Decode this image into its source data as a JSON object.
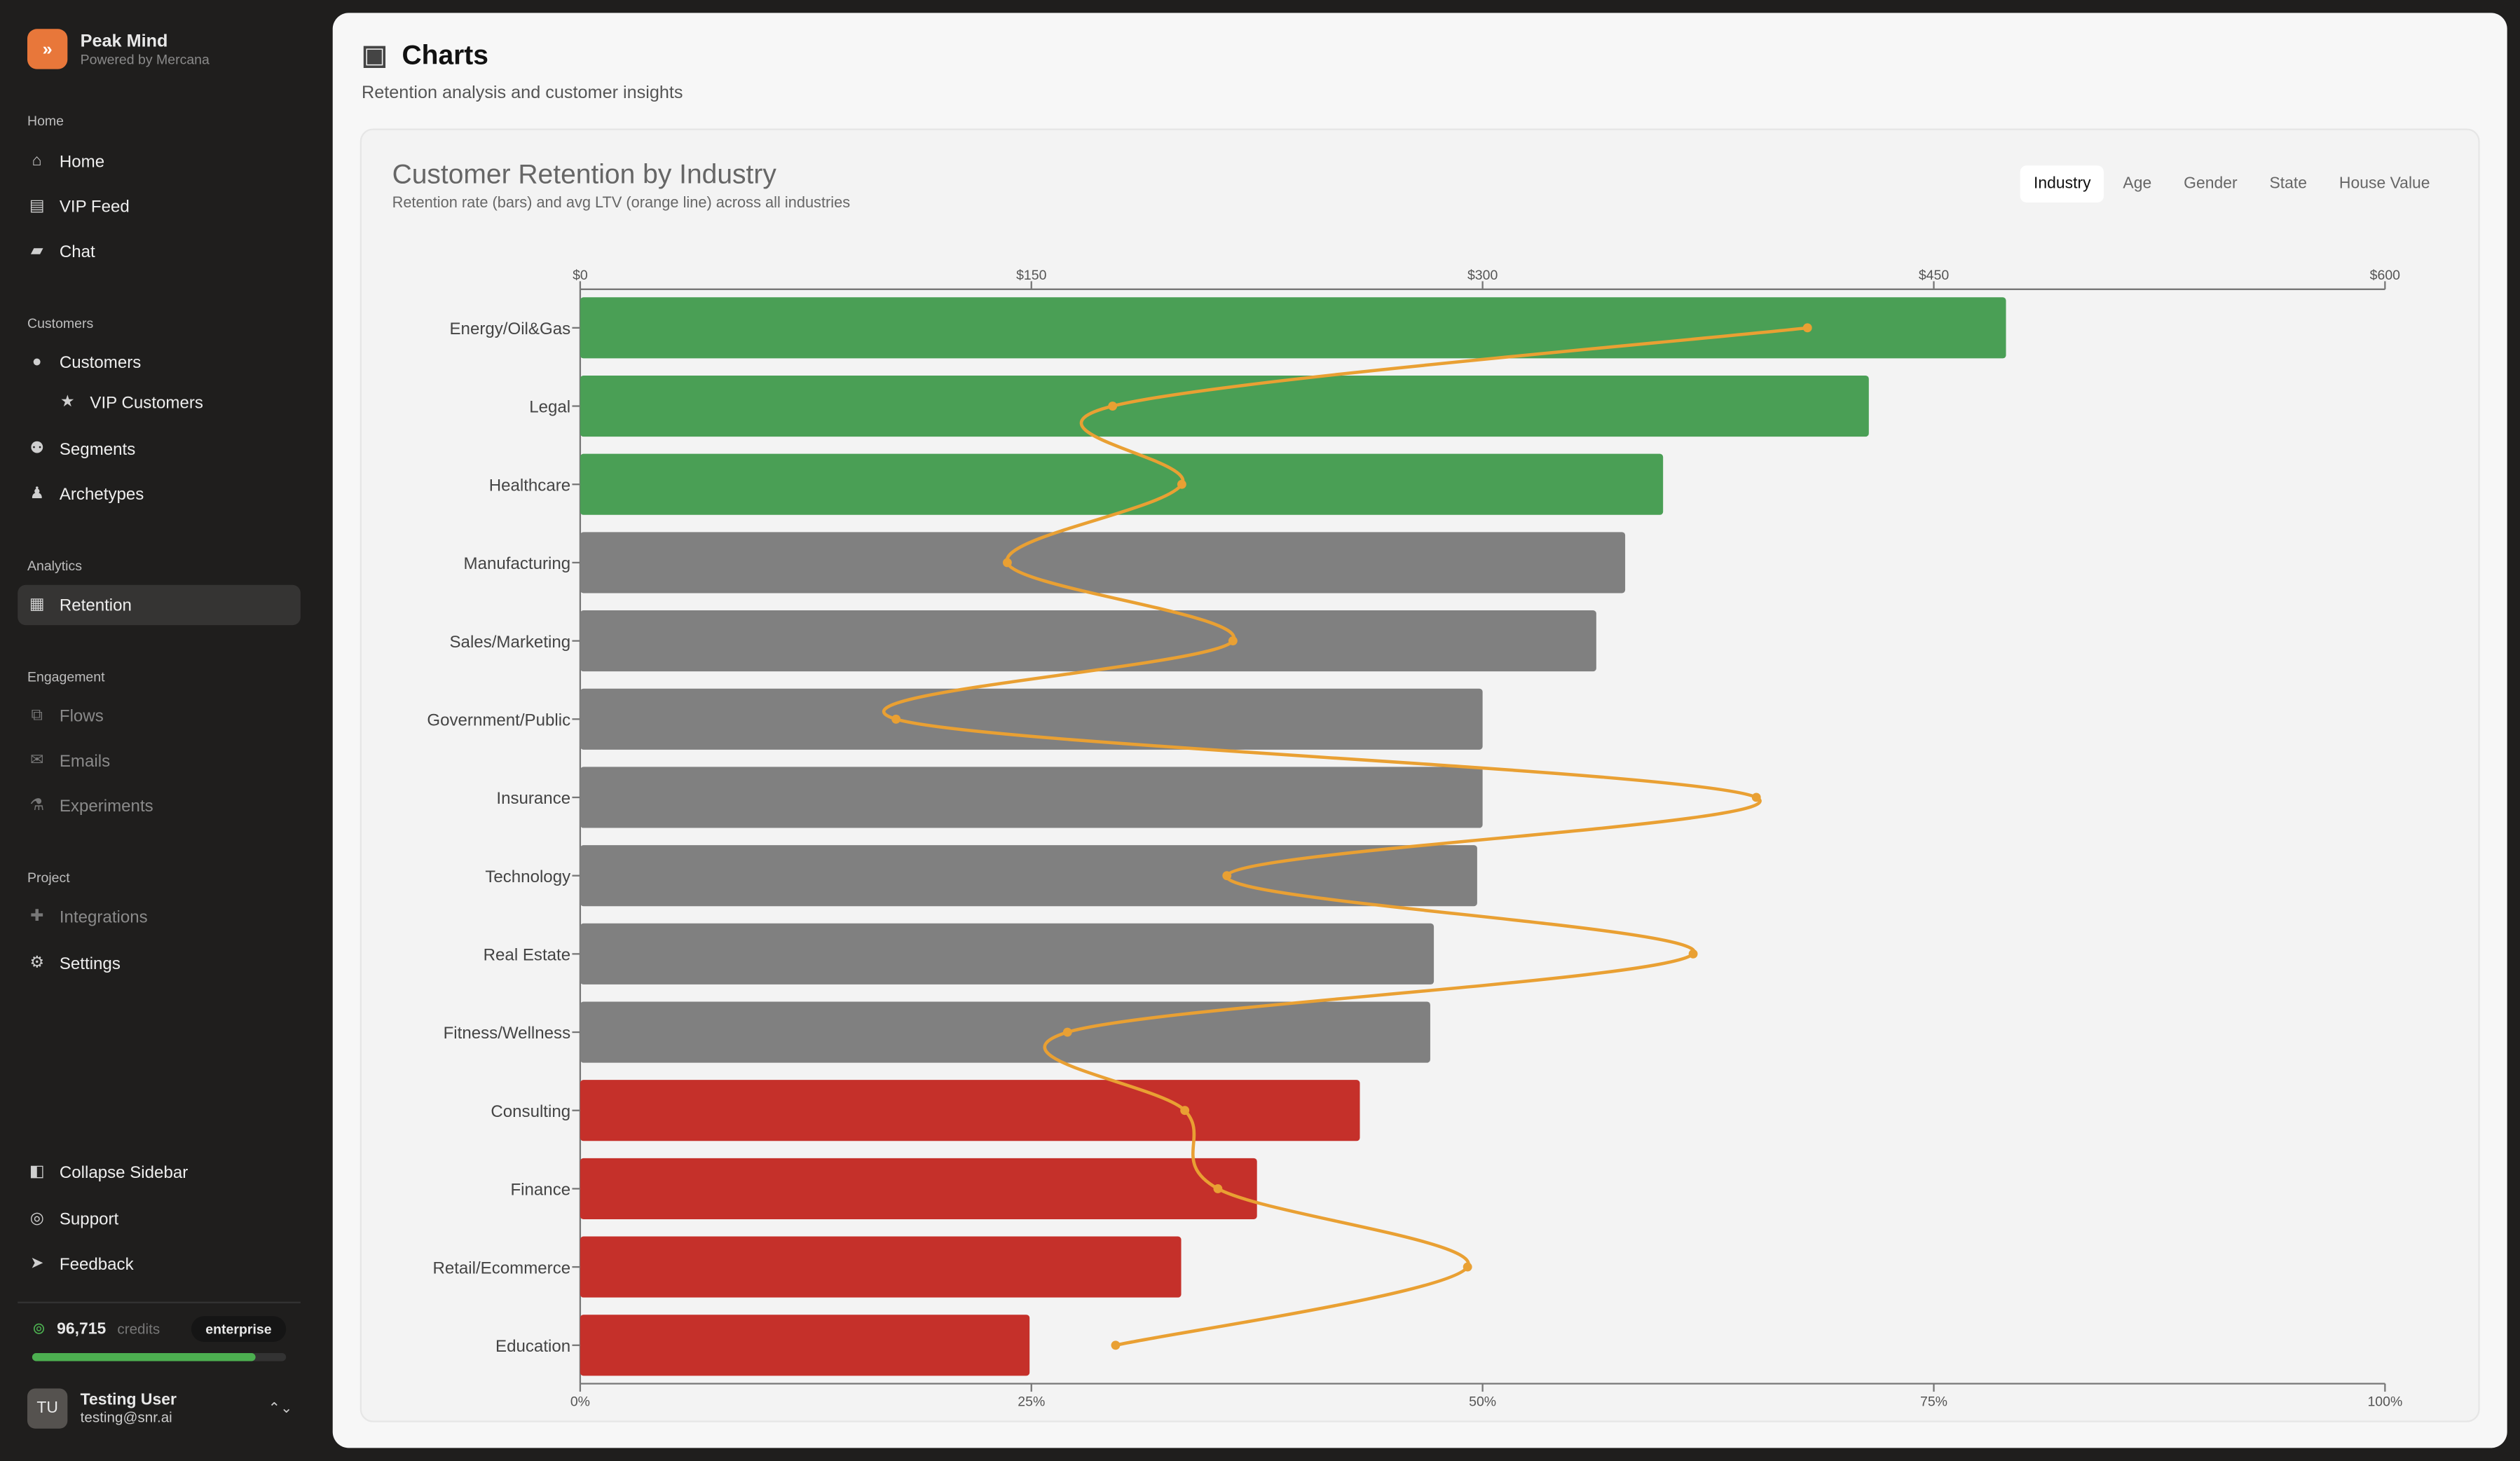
{
  "brand": {
    "name": "Peak Mind",
    "sub": "Powered by Mercana",
    "logo": "double-chevron"
  },
  "sidebar": {
    "sections": [
      "Home",
      "Customers",
      "Analytics",
      "Engagement",
      "Project"
    ],
    "items": [
      {
        "label": "Home",
        "icon": "home-icon"
      },
      {
        "label": "VIP Feed",
        "icon": "newspaper-icon"
      },
      {
        "label": "Chat",
        "icon": "chat-icon"
      },
      {
        "label": "Customers",
        "icon": "user-circle-icon"
      },
      {
        "label": "VIP Customers",
        "icon": "star-icon"
      },
      {
        "label": "Segments",
        "icon": "users-icon"
      },
      {
        "label": "Archetypes",
        "icon": "user-icon"
      },
      {
        "label": "Retention",
        "icon": "presentation-chart-icon",
        "active": true
      },
      {
        "label": "Flows",
        "icon": "flow-icon",
        "disabled": true
      },
      {
        "label": "Emails",
        "icon": "envelope-icon",
        "disabled": true
      },
      {
        "label": "Experiments",
        "icon": "beaker-icon",
        "disabled": true
      },
      {
        "label": "Integrations",
        "icon": "puzzle-icon",
        "disabled": true
      },
      {
        "label": "Settings",
        "icon": "gear-icon"
      },
      {
        "label": "Collapse Sidebar",
        "icon": "sidebar-collapse-icon"
      },
      {
        "label": "Support",
        "icon": "lifebuoy-icon"
      },
      {
        "label": "Feedback",
        "icon": "paper-plane-icon"
      }
    ],
    "credits": {
      "value": "96,715",
      "label": "credits",
      "plan": "enterprise",
      "usage_fraction": 0.88
    },
    "user": {
      "initials": "TU",
      "name": "Testing User",
      "email": "testing@snr.ai"
    }
  },
  "page": {
    "title": "Charts",
    "subtitle": "Retention analysis and customer insights"
  },
  "card": {
    "title": "Customer Retention by Industry",
    "subtitle": "Retention rate (bars) and avg LTV (orange line) across all industries",
    "tabs": [
      "Industry",
      "Age",
      "Gender",
      "State",
      "House Value"
    ],
    "active_tab": "Industry"
  },
  "chart_data": {
    "type": "bar",
    "orientation": "horizontal",
    "categories": [
      "Energy/Oil&Gas",
      "Legal",
      "Healthcare",
      "Manufacturing",
      "Sales/Marketing",
      "Government/Public",
      "Insurance",
      "Technology",
      "Real Estate",
      "Fitness/Wellness",
      "Consulting",
      "Finance",
      "Retail/Ecommerce",
      "Education"
    ],
    "series": [
      {
        "kind": "bar",
        "axis": "bottom",
        "values": [
          79,
          71.4,
          60,
          57.9,
          56.3,
          50,
          50,
          49.7,
          47.3,
          47.1,
          43.2,
          37.5,
          33.3,
          24.9
        ]
      },
      {
        "kind": "line",
        "axis": "top",
        "values": [
          408,
          177,
          200,
          142,
          217,
          105,
          391,
          215,
          370,
          162,
          201,
          212,
          295,
          178
        ]
      }
    ],
    "bar_colors": [
      "#4a9f55",
      "#4a9f55",
      "#4a9f55",
      "#808080",
      "#808080",
      "#808080",
      "#808080",
      "#808080",
      "#808080",
      "#808080",
      "#c5302a",
      "#c5302a",
      "#c5302a",
      "#c5302a"
    ],
    "line_color": "#e9a033",
    "bottom_axis": {
      "range": [
        0,
        100
      ],
      "ticks": [
        "0%",
        "25%",
        "50%",
        "75%",
        "100%"
      ]
    },
    "top_axis": {
      "range": [
        0,
        600
      ],
      "ticks": [
        "$0",
        "$150",
        "$300",
        "$450",
        "$600"
      ]
    },
    "grid": false
  }
}
